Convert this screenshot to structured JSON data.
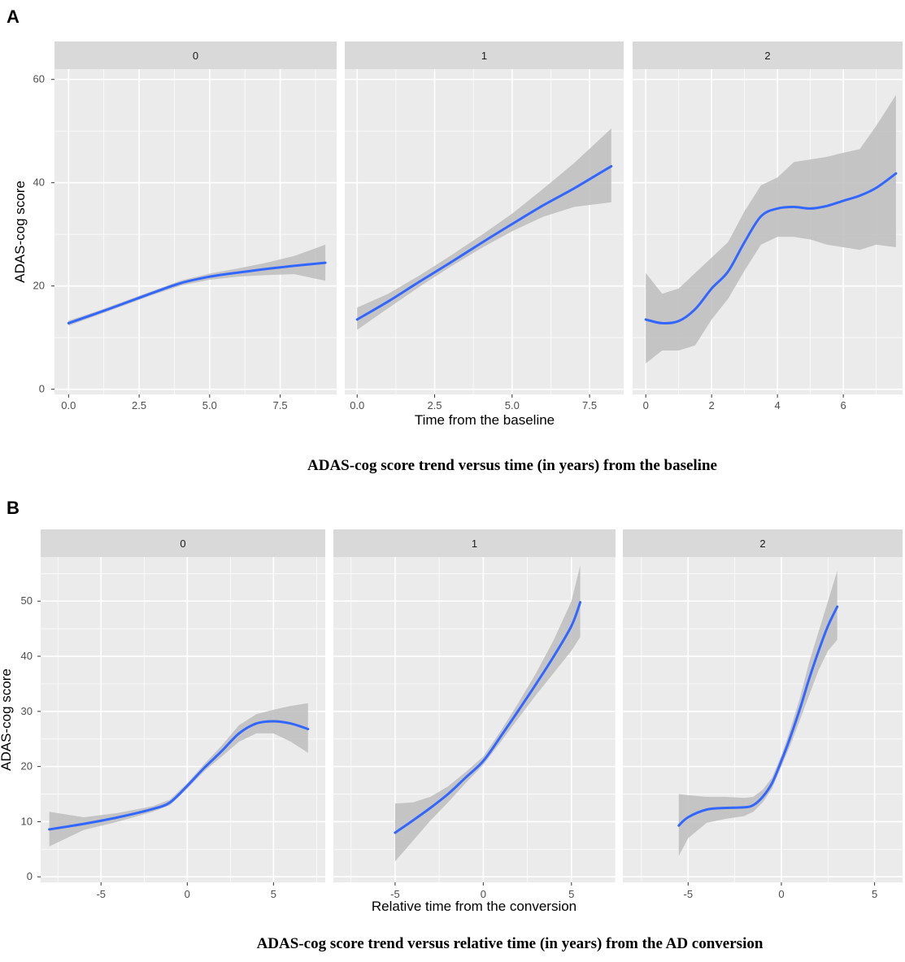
{
  "figure": {
    "panel_a_label": "A",
    "panel_b_label": "B",
    "caption_a": "ADAS-cog score trend versus time (in years) from the baseline",
    "caption_b": "ADAS-cog score trend versus relative time (in years) from the AD conversion"
  },
  "colors": {
    "panel_bg": "#ebebeb",
    "strip_bg": "#d9d9d9",
    "grid": "#ffffff",
    "line": "#3366ff",
    "ribbon": "#bdbdbd"
  },
  "chart_data": [
    {
      "type": "line",
      "title": "",
      "xlabel": "Time from the baseline",
      "ylabel": "ADAS-cog score",
      "ylim": [
        -1,
        62
      ],
      "yticks": [
        0,
        20,
        40,
        60
      ],
      "grid": true,
      "facets": [
        {
          "name": "0",
          "xlim": [
            -0.5,
            9.5
          ],
          "xticks": [
            "0.0",
            "2.5",
            "5.0",
            "7.5"
          ],
          "x": [
            0,
            1,
            2,
            3,
            4,
            5,
            6,
            7,
            8,
            9.1
          ],
          "y": [
            12.8,
            14.7,
            16.7,
            18.7,
            20.6,
            21.8,
            22.6,
            23.3,
            23.9,
            24.5
          ],
          "lower": [
            12.3,
            14.3,
            16.3,
            18.3,
            20.1,
            21.2,
            21.8,
            22.1,
            22.3,
            21.0
          ],
          "upper": [
            13.3,
            15.1,
            17.1,
            19.1,
            21.1,
            22.4,
            23.4,
            24.5,
            25.8,
            28.0
          ]
        },
        {
          "name": "1",
          "xlim": [
            -0.4,
            8.6
          ],
          "xticks": [
            "0.0",
            "2.5",
            "5.0",
            "7.5"
          ],
          "x": [
            0,
            1,
            2,
            3,
            4,
            5,
            6,
            7,
            8.2
          ],
          "y": [
            13.5,
            17.0,
            20.8,
            24.5,
            28.3,
            32.0,
            35.6,
            38.9,
            43.2
          ],
          "lower": [
            11.5,
            15.7,
            19.8,
            23.7,
            27.3,
            30.6,
            33.4,
            35.3,
            36.2
          ],
          "upper": [
            15.8,
            18.5,
            22.0,
            25.8,
            29.8,
            34.0,
            38.8,
            43.8,
            50.5
          ]
        },
        {
          "name": "2",
          "xlim": [
            -0.4,
            7.8
          ],
          "xticks": [
            "0",
            "2",
            "4",
            "6"
          ],
          "x": [
            0,
            0.5,
            1,
            1.5,
            2,
            2.5,
            3,
            3.5,
            4,
            4.5,
            5,
            5.5,
            6,
            6.5,
            7,
            7.6
          ],
          "y": [
            13.5,
            12.8,
            13.2,
            15.5,
            19.5,
            22.8,
            28.5,
            33.5,
            35.0,
            35.3,
            35.0,
            35.5,
            36.5,
            37.5,
            39.0,
            41.8
          ],
          "lower": [
            5.0,
            7.5,
            7.5,
            8.5,
            13.5,
            17.5,
            23.0,
            28.0,
            29.5,
            29.5,
            29.0,
            28.0,
            27.5,
            27.0,
            28.0,
            27.5
          ],
          "upper": [
            22.5,
            18.5,
            19.5,
            22.5,
            25.5,
            28.5,
            34.5,
            39.5,
            41.0,
            44.0,
            44.5,
            45.0,
            45.8,
            46.5,
            51.0,
            57.0
          ]
        }
      ]
    },
    {
      "type": "line",
      "title": "",
      "xlabel": "Relative time from the conversion",
      "ylabel": "ADAS-cog score",
      "ylim": [
        -1,
        58
      ],
      "yticks": [
        0,
        10,
        20,
        30,
        40,
        50
      ],
      "grid": true,
      "facets": [
        {
          "name": "0",
          "xlim": [
            -8.5,
            8
          ],
          "xticks": [
            "-5",
            "0",
            "5"
          ],
          "x": [
            -8,
            -6,
            -4,
            -2,
            -1,
            0,
            1,
            2,
            3,
            4,
            5,
            6,
            7
          ],
          "y": [
            8.6,
            9.6,
            10.8,
            12.3,
            13.5,
            16.5,
            19.8,
            22.8,
            26.0,
            27.8,
            28.2,
            27.8,
            26.8
          ],
          "lower": [
            5.5,
            8.5,
            10.0,
            11.8,
            13.0,
            16.0,
            19.2,
            21.8,
            24.5,
            26.0,
            26.0,
            24.5,
            22.5
          ],
          "upper": [
            11.8,
            10.8,
            11.6,
            12.8,
            14.0,
            17.0,
            20.5,
            23.8,
            27.5,
            29.5,
            30.3,
            31.0,
            31.5
          ]
        },
        {
          "name": "1",
          "xlim": [
            -8.5,
            7.5
          ],
          "xticks": [
            "-5",
            "0",
            "5"
          ],
          "x": [
            -5,
            -4,
            -3,
            -2,
            -1,
            0,
            1,
            2,
            3,
            4,
            5,
            5.5
          ],
          "y": [
            8.0,
            10.2,
            12.5,
            15.0,
            18.0,
            21.0,
            25.5,
            30.2,
            35.0,
            40.0,
            45.5,
            49.8
          ],
          "lower": [
            2.8,
            6.5,
            10.2,
            13.5,
            17.0,
            20.3,
            24.5,
            28.8,
            33.0,
            37.0,
            41.0,
            43.5
          ],
          "upper": [
            13.3,
            13.5,
            14.5,
            16.4,
            19.0,
            21.8,
            26.5,
            31.6,
            37.0,
            43.0,
            50.0,
            56.5
          ]
        },
        {
          "name": "2",
          "xlim": [
            -8.5,
            6.5
          ],
          "xticks": [
            "-5",
            "0",
            "5"
          ],
          "x": [
            -5.5,
            -5,
            -4,
            -3,
            -2,
            -1.5,
            -1,
            -0.5,
            0,
            0.5,
            1,
            1.5,
            2,
            2.5,
            3
          ],
          "y": [
            9.3,
            10.8,
            12.2,
            12.5,
            12.6,
            13.0,
            14.5,
            17.0,
            21.0,
            25.5,
            30.5,
            36.0,
            41.0,
            45.5,
            49.0
          ],
          "lower": [
            3.8,
            7.0,
            9.8,
            10.5,
            11.0,
            11.8,
            13.5,
            16.0,
            20.0,
            24.0,
            28.5,
            33.0,
            37.5,
            41.0,
            43.0
          ],
          "upper": [
            15.0,
            14.8,
            14.5,
            14.5,
            14.3,
            14.5,
            15.8,
            18.0,
            22.0,
            27.0,
            32.5,
            39.0,
            44.5,
            50.0,
            55.5
          ]
        }
      ]
    }
  ]
}
